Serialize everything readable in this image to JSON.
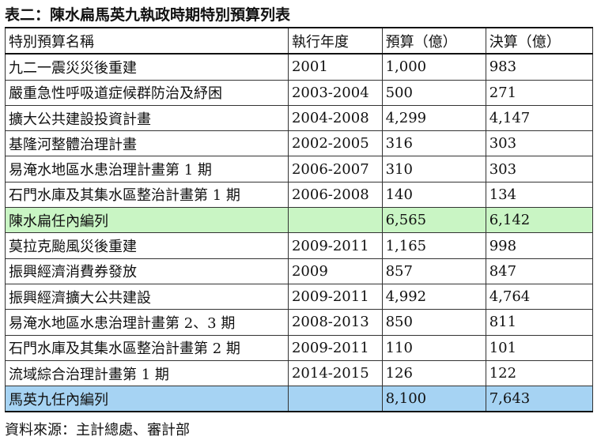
{
  "title": "表二：陳水扁馬英九執政時期特別預算列表",
  "table": {
    "headers": [
      "特別預算名稱",
      "執行年度",
      "預算（億）",
      "決算（億）"
    ],
    "rows": [
      {
        "name": "九二一震災災後重建",
        "year": "2001",
        "budget": "1,000",
        "final": "983",
        "highlight": ""
      },
      {
        "name": "嚴重急性呼吸道症候群防治及紓困",
        "year": "2003-2004",
        "budget": "500",
        "final": "271",
        "highlight": ""
      },
      {
        "name": "擴大公共建設投資計畫",
        "year": "2004-2008",
        "budget": "4,299",
        "final": "4,147",
        "highlight": ""
      },
      {
        "name": "基隆河整體治理計畫",
        "year": "2002-2005",
        "budget": "316",
        "final": "303",
        "highlight": ""
      },
      {
        "name": "易淹水地區水患治理計畫第 1 期",
        "year": "2006-2007",
        "budget": "310",
        "final": "303",
        "highlight": ""
      },
      {
        "name": "石門水庫及其集水區整治計畫第 1 期",
        "year": "2006-2008",
        "budget": "140",
        "final": "134",
        "highlight": ""
      },
      {
        "name": "陳水扁任內編列",
        "year": "",
        "budget": "6,565",
        "final": "6,142",
        "highlight": "green"
      },
      {
        "name": "莫拉克颱風災後重建",
        "year": "2009-2011",
        "budget": "1,165",
        "final": "998",
        "highlight": ""
      },
      {
        "name": "振興經濟消費券發放",
        "year": "2009",
        "budget": "857",
        "final": "847",
        "highlight": ""
      },
      {
        "name": "振興經濟擴大公共建設",
        "year": "2009-2011",
        "budget": "4,992",
        "final": "4,764",
        "highlight": ""
      },
      {
        "name": "易淹水地區水患治理計畫第 2、3 期",
        "year": "2008-2013",
        "budget": "850",
        "final": "811",
        "highlight": ""
      },
      {
        "name": "石門水庫及其集水區整治計畫第 2 期",
        "year": "2009-2011",
        "budget": "110",
        "final": "101",
        "highlight": ""
      },
      {
        "name": "流域綜合治理計畫第 1 期",
        "year": "2014-2015",
        "budget": "126",
        "final": "122",
        "highlight": ""
      },
      {
        "name": "馬英九任內編列",
        "year": "",
        "budget": "8,100",
        "final": "7,643",
        "highlight": "blue"
      }
    ]
  },
  "source": "資料來源：主計總處、審計部",
  "colors": {
    "green_row": "#c9f5c4",
    "blue_row": "#a6d3f3"
  }
}
